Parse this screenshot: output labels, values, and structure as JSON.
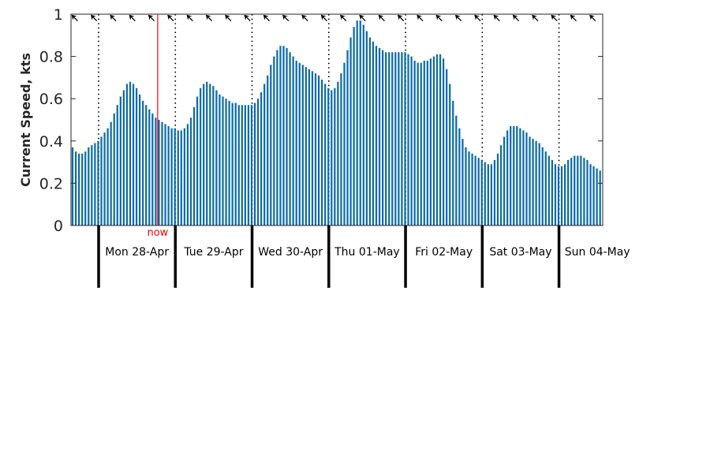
{
  "chart_data": {
    "type": "bar",
    "ylabel": "Current Speed, kts",
    "ylim": [
      0,
      1
    ],
    "yticks": [
      "0",
      "0.2",
      "0.4",
      "0.6",
      "0.8",
      "1"
    ],
    "now_label": "now",
    "now_position_day": 0.77,
    "bar_color": "#0b6aa8",
    "now_color": "#ff0000",
    "days": [
      "Mon 28-Apr",
      "Tue 29-Apr",
      "Wed 30-Apr",
      "Thu 01-May",
      "Fri 02-May",
      "Sat 03-May",
      "Sun 04-May"
    ],
    "range_days": [
      -0.36,
      6.57
    ],
    "interval_hours": 1,
    "direction_arrow_deg": 315,
    "values": [
      0.37,
      0.35,
      0.34,
      0.34,
      0.35,
      0.37,
      0.38,
      0.39,
      0.4,
      0.42,
      0.44,
      0.46,
      0.49,
      0.53,
      0.57,
      0.61,
      0.64,
      0.67,
      0.68,
      0.67,
      0.65,
      0.62,
      0.59,
      0.57,
      0.55,
      0.53,
      0.51,
      0.5,
      0.49,
      0.48,
      0.47,
      0.46,
      0.46,
      0.45,
      0.45,
      0.46,
      0.48,
      0.51,
      0.56,
      0.61,
      0.65,
      0.67,
      0.68,
      0.67,
      0.66,
      0.64,
      0.62,
      0.61,
      0.6,
      0.59,
      0.58,
      0.58,
      0.57,
      0.57,
      0.57,
      0.57,
      0.57,
      0.58,
      0.6,
      0.63,
      0.67,
      0.71,
      0.76,
      0.8,
      0.83,
      0.85,
      0.85,
      0.84,
      0.82,
      0.8,
      0.78,
      0.77,
      0.76,
      0.75,
      0.74,
      0.73,
      0.72,
      0.71,
      0.69,
      0.67,
      0.65,
      0.64,
      0.65,
      0.68,
      0.72,
      0.77,
      0.83,
      0.89,
      0.94,
      0.97,
      0.97,
      0.95,
      0.92,
      0.89,
      0.87,
      0.85,
      0.84,
      0.83,
      0.82,
      0.82,
      0.82,
      0.82,
      0.82,
      0.82,
      0.82,
      0.81,
      0.8,
      0.78,
      0.77,
      0.77,
      0.78,
      0.78,
      0.79,
      0.8,
      0.81,
      0.81,
      0.79,
      0.74,
      0.67,
      0.59,
      0.52,
      0.46,
      0.41,
      0.37,
      0.35,
      0.34,
      0.33,
      0.32,
      0.31,
      0.3,
      0.29,
      0.29,
      0.31,
      0.34,
      0.38,
      0.42,
      0.45,
      0.47,
      0.47,
      0.47,
      0.46,
      0.45,
      0.44,
      0.42,
      0.41,
      0.4,
      0.39,
      0.37,
      0.35,
      0.33,
      0.31,
      0.29,
      0.28,
      0.28,
      0.29,
      0.31,
      0.32,
      0.33,
      0.33,
      0.33,
      0.32,
      0.31,
      0.29,
      0.28,
      0.27,
      0.26
    ]
  }
}
